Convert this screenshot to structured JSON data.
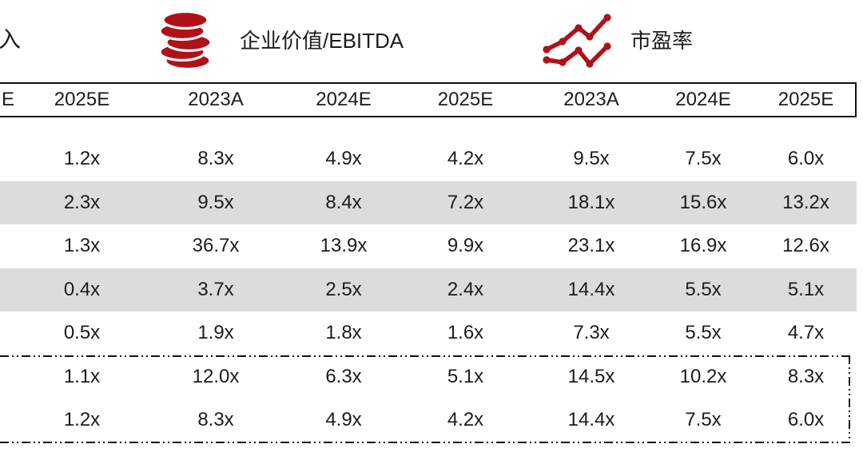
{
  "legend": {
    "clipped_label": "入",
    "items": [
      {
        "icon": "coins-icon",
        "label": "企业价值/EBITDA"
      },
      {
        "icon": "line-chart-icon",
        "label": "市盈率"
      }
    ]
  },
  "table": {
    "columns": [
      "E",
      "2025E",
      "2023A",
      "2024E",
      "2025E",
      "2023A",
      "2024E",
      "2025E"
    ],
    "rows": [
      {
        "shaded": false,
        "boxed": false,
        "values": [
          "",
          "1.2x",
          "8.3x",
          "4.9x",
          "4.2x",
          "9.5x",
          "7.5x",
          "6.0x"
        ]
      },
      {
        "shaded": true,
        "boxed": false,
        "values": [
          "",
          "2.3x",
          "9.5x",
          "8.4x",
          "7.2x",
          "18.1x",
          "15.6x",
          "13.2x"
        ]
      },
      {
        "shaded": false,
        "boxed": false,
        "values": [
          "",
          "1.3x",
          "36.7x",
          "13.9x",
          "9.9x",
          "23.1x",
          "16.9x",
          "12.6x"
        ]
      },
      {
        "shaded": true,
        "boxed": false,
        "values": [
          "",
          "0.4x",
          "3.7x",
          "2.5x",
          "2.4x",
          "14.4x",
          "5.5x",
          "5.1x"
        ]
      },
      {
        "shaded": false,
        "boxed": false,
        "values": [
          "",
          "0.5x",
          "1.9x",
          "1.8x",
          "1.6x",
          "7.3x",
          "5.5x",
          "4.7x"
        ]
      },
      {
        "shaded": false,
        "boxed": true,
        "values": [
          "",
          "1.1x",
          "12.0x",
          "6.3x",
          "5.1x",
          "14.5x",
          "10.2x",
          "8.3x"
        ]
      },
      {
        "shaded": false,
        "boxed": true,
        "values": [
          "",
          "1.2x",
          "8.3x",
          "4.9x",
          "4.2x",
          "14.4x",
          "7.5x",
          "6.0x"
        ]
      }
    ]
  },
  "colors": {
    "accent_red": "#b01118",
    "row_shade": "#dcdcdc",
    "text": "#1c1c1c",
    "line": "#111111"
  }
}
